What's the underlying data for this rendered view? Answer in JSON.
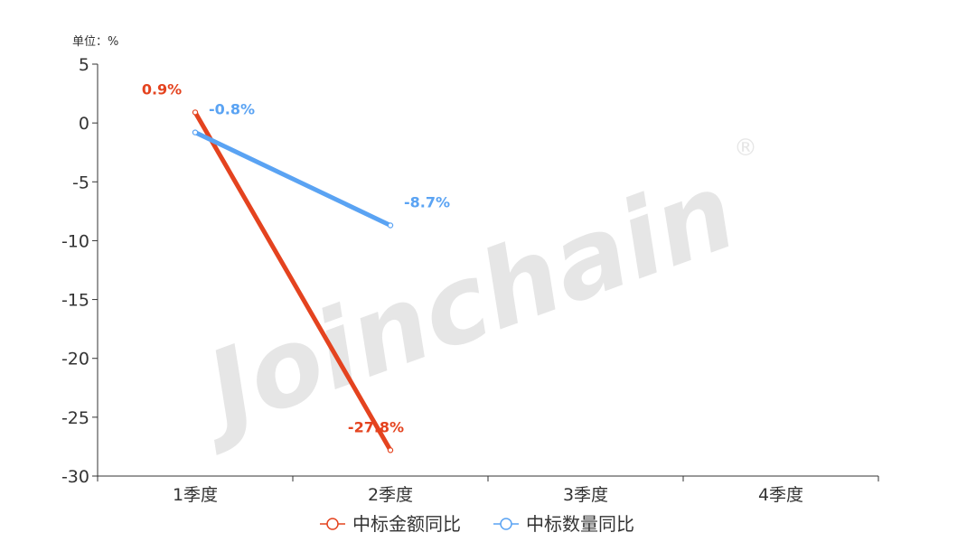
{
  "watermark": {
    "text": "Joinchain",
    "mark": "®"
  },
  "chart_data": {
    "type": "line",
    "unit_label": "单位：%",
    "categories": [
      "1季度",
      "2季度",
      "3季度",
      "4季度"
    ],
    "ylim": [
      -30,
      5
    ],
    "yticks": [
      5,
      0,
      -5,
      -10,
      -15,
      -20,
      -25,
      -30
    ],
    "grid": false,
    "legend_position": "bottom-center",
    "series": [
      {
        "name": "中标金额同比",
        "color": "#e4431f",
        "values": [
          0.9,
          -27.8,
          null,
          null
        ],
        "labels": [
          "0.9%",
          "-27.8%",
          null,
          null
        ]
      },
      {
        "name": "中标数量同比",
        "color": "#5aa3f3",
        "values": [
          -0.8,
          -8.7,
          null,
          null
        ],
        "labels": [
          "-0.8%",
          "-8.7%",
          null,
          null
        ]
      }
    ]
  }
}
